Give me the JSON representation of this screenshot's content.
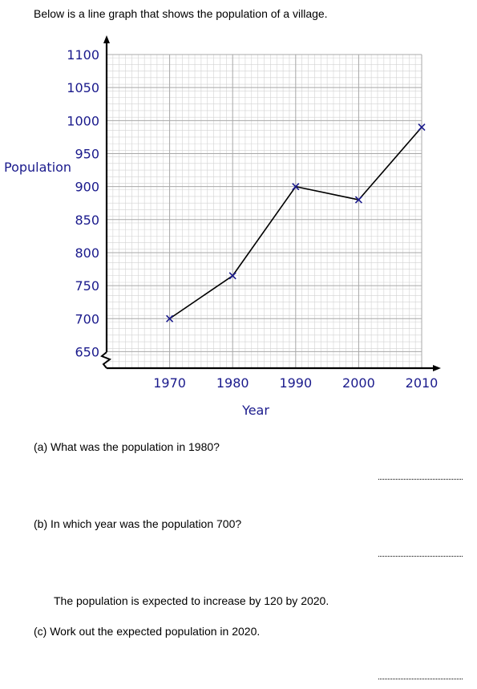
{
  "intro": "Below is a line graph that shows the population of a village.",
  "chart_data": {
    "type": "line",
    "xlabel": "Year",
    "ylabel": "Population",
    "x_ticks": [
      1970,
      1980,
      1990,
      2000,
      2010
    ],
    "y_ticks": [
      650,
      700,
      750,
      800,
      850,
      900,
      950,
      1000,
      1050,
      1100
    ],
    "xlim": [
      1960,
      2010
    ],
    "ylim": [
      625,
      1100
    ],
    "grid": true,
    "y_axis_break": true,
    "line_color": "#000000",
    "marker_color": "#1a1a8c",
    "marker": "x",
    "series": [
      {
        "x": [
          1970,
          1980,
          1990,
          2000,
          2010
        ],
        "y": [
          700,
          765,
          900,
          880,
          990
        ]
      }
    ]
  },
  "questions": {
    "a": "(a)  What was the population in 1980?",
    "b": "(b)  In which year was the population 700?",
    "c_intro": "The population is expected to increase by 120 by 2020.",
    "c": "(c)  Work out the expected population in 2020."
  }
}
